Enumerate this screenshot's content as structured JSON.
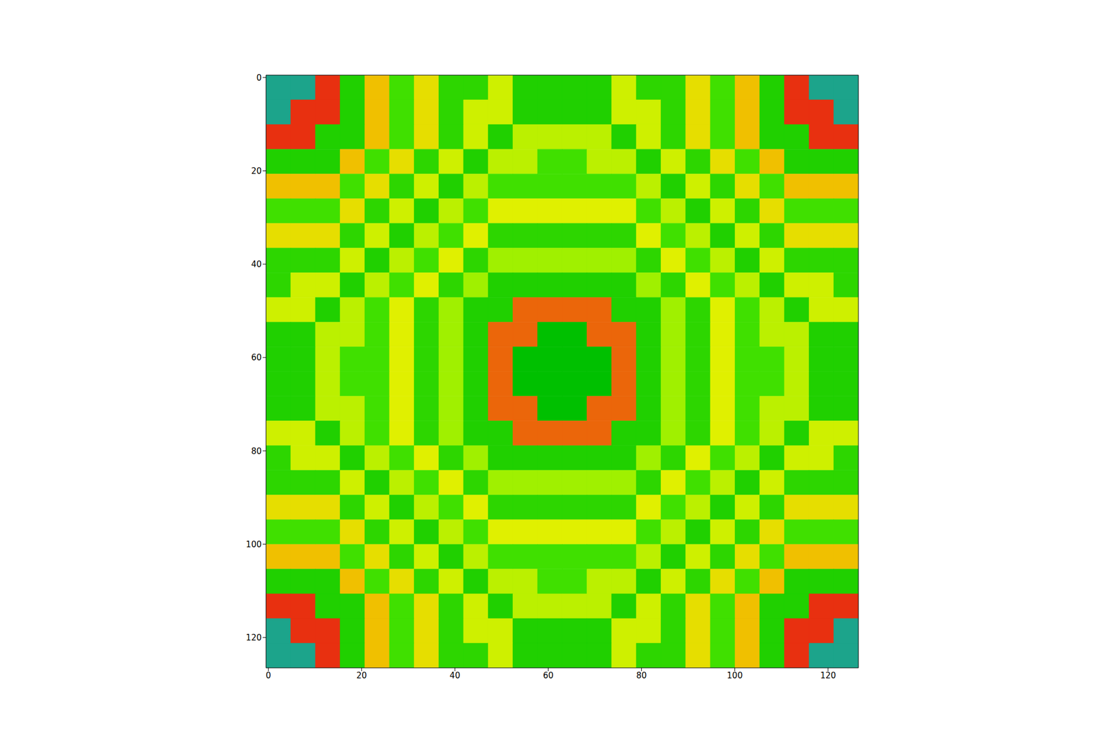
{
  "chart_data": {
    "type": "heatmap",
    "xlim": [
      -0.5,
      126.5
    ],
    "ylim": [
      126.5,
      -0.5
    ],
    "xticks": [
      0,
      20,
      40,
      60,
      80,
      100,
      120
    ],
    "yticks": [
      0,
      20,
      40,
      60,
      80,
      100,
      120
    ],
    "cells": [
      [
        0.22,
        0.22,
        0.78,
        0.4,
        0.7,
        0.45,
        0.65,
        0.42,
        0.42,
        0.6,
        0.4,
        0.4,
        0.4,
        0.4,
        0.6,
        0.42,
        0.42,
        0.65,
        0.45,
        0.7,
        0.4,
        0.78,
        0.22,
        0.22
      ],
      [
        0.22,
        0.78,
        0.78,
        0.4,
        0.7,
        0.45,
        0.65,
        0.42,
        0.6,
        0.6,
        0.4,
        0.4,
        0.4,
        0.4,
        0.6,
        0.6,
        0.42,
        0.65,
        0.45,
        0.7,
        0.4,
        0.78,
        0.78,
        0.22
      ],
      [
        0.78,
        0.78,
        0.4,
        0.4,
        0.7,
        0.45,
        0.65,
        0.42,
        0.6,
        0.4,
        0.58,
        0.58,
        0.58,
        0.58,
        0.4,
        0.6,
        0.42,
        0.65,
        0.45,
        0.7,
        0.4,
        0.4,
        0.78,
        0.78
      ],
      [
        0.4,
        0.4,
        0.4,
        0.7,
        0.45,
        0.65,
        0.42,
        0.6,
        0.4,
        0.58,
        0.58,
        0.45,
        0.45,
        0.58,
        0.58,
        0.4,
        0.6,
        0.42,
        0.65,
        0.45,
        0.7,
        0.4,
        0.4,
        0.4
      ],
      [
        0.7,
        0.7,
        0.7,
        0.45,
        0.65,
        0.42,
        0.6,
        0.4,
        0.58,
        0.45,
        0.45,
        0.45,
        0.45,
        0.45,
        0.45,
        0.58,
        0.4,
        0.6,
        0.42,
        0.65,
        0.45,
        0.7,
        0.7,
        0.7
      ],
      [
        0.45,
        0.45,
        0.45,
        0.65,
        0.42,
        0.6,
        0.4,
        0.58,
        0.45,
        0.62,
        0.62,
        0.62,
        0.62,
        0.62,
        0.62,
        0.45,
        0.58,
        0.4,
        0.6,
        0.42,
        0.65,
        0.45,
        0.45,
        0.45
      ],
      [
        0.65,
        0.65,
        0.65,
        0.42,
        0.6,
        0.4,
        0.58,
        0.45,
        0.62,
        0.42,
        0.42,
        0.42,
        0.42,
        0.42,
        0.42,
        0.62,
        0.45,
        0.58,
        0.4,
        0.6,
        0.42,
        0.65,
        0.65,
        0.65
      ],
      [
        0.42,
        0.42,
        0.42,
        0.6,
        0.4,
        0.58,
        0.45,
        0.62,
        0.42,
        0.55,
        0.55,
        0.55,
        0.55,
        0.55,
        0.55,
        0.42,
        0.62,
        0.45,
        0.58,
        0.4,
        0.6,
        0.42,
        0.42,
        0.42
      ],
      [
        0.42,
        0.6,
        0.6,
        0.4,
        0.58,
        0.45,
        0.62,
        0.42,
        0.55,
        0.4,
        0.4,
        0.4,
        0.4,
        0.4,
        0.4,
        0.55,
        0.42,
        0.62,
        0.45,
        0.58,
        0.4,
        0.6,
        0.6,
        0.42
      ],
      [
        0.6,
        0.6,
        0.4,
        0.58,
        0.45,
        0.62,
        0.42,
        0.55,
        0.4,
        0.4,
        0.75,
        0.75,
        0.75,
        0.75,
        0.4,
        0.4,
        0.55,
        0.42,
        0.62,
        0.45,
        0.58,
        0.4,
        0.6,
        0.6
      ],
      [
        0.4,
        0.4,
        0.58,
        0.58,
        0.45,
        0.62,
        0.42,
        0.55,
        0.4,
        0.75,
        0.75,
        0.35,
        0.35,
        0.75,
        0.75,
        0.4,
        0.55,
        0.42,
        0.62,
        0.45,
        0.58,
        0.58,
        0.4,
        0.4
      ],
      [
        0.4,
        0.4,
        0.58,
        0.45,
        0.45,
        0.62,
        0.42,
        0.55,
        0.4,
        0.75,
        0.35,
        0.35,
        0.35,
        0.35,
        0.75,
        0.4,
        0.55,
        0.42,
        0.62,
        0.45,
        0.45,
        0.58,
        0.4,
        0.4
      ],
      [
        0.4,
        0.4,
        0.58,
        0.45,
        0.45,
        0.62,
        0.42,
        0.55,
        0.4,
        0.75,
        0.35,
        0.35,
        0.35,
        0.35,
        0.75,
        0.4,
        0.55,
        0.42,
        0.62,
        0.45,
        0.45,
        0.58,
        0.4,
        0.4
      ],
      [
        0.4,
        0.4,
        0.58,
        0.58,
        0.45,
        0.62,
        0.42,
        0.55,
        0.4,
        0.75,
        0.75,
        0.35,
        0.35,
        0.75,
        0.75,
        0.4,
        0.55,
        0.42,
        0.62,
        0.45,
        0.58,
        0.58,
        0.4,
        0.4
      ],
      [
        0.6,
        0.6,
        0.4,
        0.58,
        0.45,
        0.62,
        0.42,
        0.55,
        0.4,
        0.4,
        0.75,
        0.75,
        0.75,
        0.75,
        0.4,
        0.4,
        0.55,
        0.42,
        0.62,
        0.45,
        0.58,
        0.4,
        0.6,
        0.6
      ],
      [
        0.42,
        0.6,
        0.6,
        0.4,
        0.58,
        0.45,
        0.62,
        0.42,
        0.55,
        0.4,
        0.4,
        0.4,
        0.4,
        0.4,
        0.4,
        0.55,
        0.42,
        0.62,
        0.45,
        0.58,
        0.4,
        0.6,
        0.6,
        0.42
      ],
      [
        0.42,
        0.42,
        0.42,
        0.6,
        0.4,
        0.58,
        0.45,
        0.62,
        0.42,
        0.55,
        0.55,
        0.55,
        0.55,
        0.55,
        0.55,
        0.42,
        0.62,
        0.45,
        0.58,
        0.4,
        0.6,
        0.42,
        0.42,
        0.42
      ],
      [
        0.65,
        0.65,
        0.65,
        0.42,
        0.6,
        0.4,
        0.58,
        0.45,
        0.62,
        0.42,
        0.42,
        0.42,
        0.42,
        0.42,
        0.42,
        0.62,
        0.45,
        0.58,
        0.4,
        0.6,
        0.42,
        0.65,
        0.65,
        0.65
      ],
      [
        0.45,
        0.45,
        0.45,
        0.65,
        0.42,
        0.6,
        0.4,
        0.58,
        0.45,
        0.62,
        0.62,
        0.62,
        0.62,
        0.62,
        0.62,
        0.45,
        0.58,
        0.4,
        0.6,
        0.42,
        0.65,
        0.45,
        0.45,
        0.45
      ],
      [
        0.7,
        0.7,
        0.7,
        0.45,
        0.65,
        0.42,
        0.6,
        0.4,
        0.58,
        0.45,
        0.45,
        0.45,
        0.45,
        0.45,
        0.45,
        0.58,
        0.4,
        0.6,
        0.42,
        0.65,
        0.45,
        0.7,
        0.7,
        0.7
      ],
      [
        0.4,
        0.4,
        0.4,
        0.7,
        0.45,
        0.65,
        0.42,
        0.6,
        0.4,
        0.58,
        0.58,
        0.45,
        0.45,
        0.58,
        0.58,
        0.4,
        0.6,
        0.42,
        0.65,
        0.45,
        0.7,
        0.4,
        0.4,
        0.4
      ],
      [
        0.78,
        0.78,
        0.4,
        0.4,
        0.7,
        0.45,
        0.65,
        0.42,
        0.6,
        0.4,
        0.58,
        0.58,
        0.58,
        0.58,
        0.4,
        0.6,
        0.42,
        0.65,
        0.45,
        0.7,
        0.4,
        0.4,
        0.78,
        0.78
      ],
      [
        0.22,
        0.78,
        0.78,
        0.4,
        0.7,
        0.45,
        0.65,
        0.42,
        0.6,
        0.6,
        0.4,
        0.4,
        0.4,
        0.4,
        0.6,
        0.6,
        0.42,
        0.65,
        0.45,
        0.7,
        0.4,
        0.78,
        0.78,
        0.22
      ],
      [
        0.22,
        0.22,
        0.78,
        0.4,
        0.7,
        0.45,
        0.65,
        0.42,
        0.42,
        0.6,
        0.4,
        0.4,
        0.4,
        0.4,
        0.6,
        0.42,
        0.42,
        0.65,
        0.45,
        0.7,
        0.4,
        0.78,
        0.22,
        0.22
      ]
    ]
  }
}
